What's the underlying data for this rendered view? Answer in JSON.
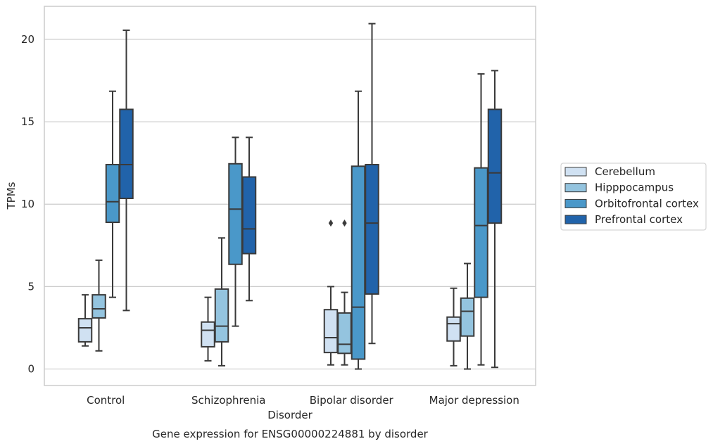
{
  "chart_data": {
    "type": "boxplot",
    "caption": "Gene expression for ENSG00000224881 by disorder",
    "xlabel": "Disorder",
    "ylabel": "TPMs",
    "ylim": [
      -1,
      22
    ],
    "yticks": [
      0,
      5,
      10,
      15,
      20
    ],
    "grid": "horizontal",
    "legend_position": "right",
    "categories": [
      "Control",
      "Schizophrenia",
      "Bipolar disorder",
      "Major depression"
    ],
    "series": [
      {
        "name": "Cerebellum",
        "color": "#d0e1f2",
        "boxes": [
          {
            "whislo": 1.4,
            "q1": 1.65,
            "med": 2.5,
            "q3": 3.05,
            "whishi": 4.5,
            "fliers": []
          },
          {
            "whislo": 0.5,
            "q1": 1.35,
            "med": 2.35,
            "q3": 2.85,
            "whishi": 4.35,
            "fliers": []
          },
          {
            "whislo": 0.25,
            "q1": 1.0,
            "med": 1.9,
            "q3": 3.6,
            "whishi": 5.0,
            "fliers": [
              8.85
            ]
          },
          {
            "whislo": 0.2,
            "q1": 1.7,
            "med": 2.75,
            "q3": 3.15,
            "whishi": 4.9,
            "fliers": []
          }
        ]
      },
      {
        "name": "Hipppocampus",
        "color": "#94c4df",
        "boxes": [
          {
            "whislo": 1.1,
            "q1": 3.1,
            "med": 3.65,
            "q3": 4.5,
            "whishi": 6.6,
            "fliers": []
          },
          {
            "whislo": 0.2,
            "q1": 1.65,
            "med": 2.6,
            "q3": 4.85,
            "whishi": 7.95,
            "fliers": []
          },
          {
            "whislo": 0.25,
            "q1": 0.95,
            "med": 1.5,
            "q3": 3.4,
            "whishi": 4.65,
            "fliers": [
              8.85
            ]
          },
          {
            "whislo": 0.0,
            "q1": 2.0,
            "med": 3.5,
            "q3": 4.3,
            "whishi": 6.4,
            "fliers": []
          }
        ]
      },
      {
        "name": "Orbitofrontal cortex",
        "color": "#4a98c9",
        "boxes": [
          {
            "whislo": 4.35,
            "q1": 8.9,
            "med": 10.15,
            "q3": 12.4,
            "whishi": 16.85,
            "fliers": []
          },
          {
            "whislo": 2.6,
            "q1": 6.35,
            "med": 9.7,
            "q3": 12.45,
            "whishi": 14.05,
            "fliers": []
          },
          {
            "whislo": 0.0,
            "q1": 0.6,
            "med": 3.75,
            "q3": 12.3,
            "whishi": 16.85,
            "fliers": []
          },
          {
            "whislo": 0.25,
            "q1": 4.35,
            "med": 8.7,
            "q3": 12.2,
            "whishi": 17.9,
            "fliers": []
          }
        ]
      },
      {
        "name": "Prefrontal cortex",
        "color": "#2163aa",
        "boxes": [
          {
            "whislo": 3.55,
            "q1": 10.35,
            "med": 12.4,
            "q3": 15.75,
            "whishi": 20.55,
            "fliers": []
          },
          {
            "whislo": 4.15,
            "q1": 7.0,
            "med": 8.5,
            "q3": 11.65,
            "whishi": 14.05,
            "fliers": []
          },
          {
            "whislo": 1.55,
            "q1": 4.55,
            "med": 8.85,
            "q3": 12.4,
            "whishi": 20.95,
            "fliers": []
          },
          {
            "whislo": 0.1,
            "q1": 8.85,
            "med": 11.9,
            "q3": 15.75,
            "whishi": 18.1,
            "fliers": []
          }
        ]
      }
    ]
  }
}
